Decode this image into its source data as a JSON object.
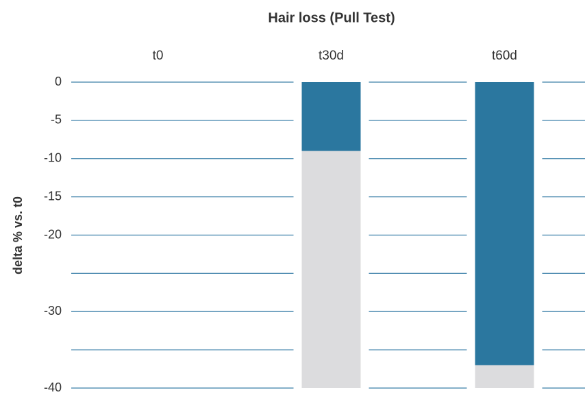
{
  "chart_data": {
    "type": "bar",
    "title": "Hair loss (Pull Test)",
    "y_label": "delta % vs. t0",
    "categories": [
      "t0",
      "t30d",
      "t60d"
    ],
    "values": [
      null,
      -9,
      -37
    ],
    "color": "#2b779f",
    "track_color": "#dcdcde",
    "grid_color": "#3a7fa8",
    "ylim": [
      -40,
      0
    ],
    "yticks": [
      0,
      -5,
      -10,
      -15,
      -20,
      -30,
      -40
    ],
    "grid_lines": [
      0,
      -5,
      -10,
      -15,
      -20,
      -25,
      -30,
      -35,
      -40
    ],
    "grid": true
  }
}
